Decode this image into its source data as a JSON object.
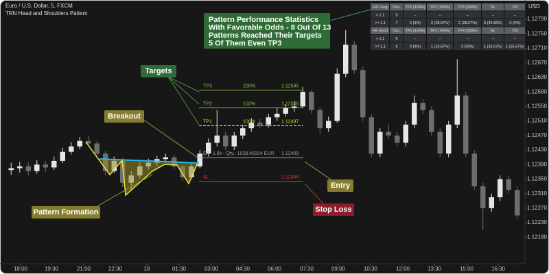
{
  "header": {
    "symbol": "Euro / U.S. Dollar, 5, FXCM",
    "indicator": "TRN Head and Shoulders Pattern",
    "currency": "USD"
  },
  "chart_data": {
    "type": "candlestick",
    "up_color": "#e6e6e6",
    "down_color": "#6e6e6e",
    "grid": false,
    "xlim": [
      0,
      60
    ],
    "ylim": [
      1.12117,
      1.12843
    ],
    "xticks": [
      {
        "value": 1.6,
        "label": "18:00"
      },
      {
        "value": 5.2,
        "label": "19:30"
      },
      {
        "value": 8.96,
        "label": "21:00"
      },
      {
        "value": 12.64,
        "label": "22:30"
      },
      {
        "value": 16.32,
        "label": "18"
      },
      {
        "value": 20.08,
        "label": "01:30"
      },
      {
        "value": 23.84,
        "label": "03:00"
      },
      {
        "value": 27.52,
        "label": "04:30"
      },
      {
        "value": 31.2,
        "label": "06:00"
      },
      {
        "value": 34.96,
        "label": "07:30"
      },
      {
        "value": 38.64,
        "label": "09:00"
      },
      {
        "value": 42.4,
        "label": "10:30"
      },
      {
        "value": 46.16,
        "label": "12:00"
      },
      {
        "value": 49.84,
        "label": "13:30"
      },
      {
        "value": 53.6,
        "label": "15:00"
      },
      {
        "value": 57.28,
        "label": "16:30"
      }
    ],
    "yticks": [
      {
        "value": 1.1279,
        "label": "1.12790"
      },
      {
        "value": 1.1275,
        "label": "1.12750"
      },
      {
        "value": 1.1271,
        "label": "1.12710"
      },
      {
        "value": 1.1267,
        "label": "1.12670"
      },
      {
        "value": 1.1263,
        "label": "1.12630"
      },
      {
        "value": 1.1259,
        "label": "1.12590"
      },
      {
        "value": 1.1255,
        "label": "1.12550"
      },
      {
        "value": 1.1251,
        "label": "1.12510"
      },
      {
        "value": 1.1247,
        "label": "1.12470"
      },
      {
        "value": 1.1243,
        "label": "1.12430"
      },
      {
        "value": 1.1239,
        "label": "1.12390"
      },
      {
        "value": 1.1235,
        "label": "1.12350"
      },
      {
        "value": 1.1231,
        "label": "1.12310"
      },
      {
        "value": 1.1227,
        "label": "1.12270"
      },
      {
        "value": 1.1223,
        "label": "1.12230"
      },
      {
        "value": 1.1219,
        "label": "1.12190"
      }
    ],
    "candles": [
      [
        1.12375,
        1.12395,
        1.12362,
        1.1238
      ],
      [
        1.1238,
        1.12398,
        1.12368,
        1.12385
      ],
      [
        1.12385,
        1.12396,
        1.1236,
        1.12372
      ],
      [
        1.12372,
        1.12402,
        1.12365,
        1.1239
      ],
      [
        1.1239,
        1.124,
        1.1237,
        1.12382
      ],
      [
        1.12382,
        1.12412,
        1.12375,
        1.124
      ],
      [
        1.124,
        1.12436,
        1.12394,
        1.12425
      ],
      [
        1.12425,
        1.12452,
        1.12418,
        1.1244
      ],
      [
        1.1244,
        1.12466,
        1.12432,
        1.12455
      ],
      [
        1.12455,
        1.12468,
        1.1244,
        1.12448
      ],
      [
        1.12448,
        1.12455,
        1.1241,
        1.1242
      ],
      [
        1.1242,
        1.12428,
        1.1236,
        1.12372
      ],
      [
        1.12372,
        1.12412,
        1.12366,
        1.124
      ],
      [
        1.124,
        1.12408,
        1.12328,
        1.1234
      ],
      [
        1.1234,
        1.12372,
        1.1232,
        1.1236
      ],
      [
        1.1236,
        1.12396,
        1.12352,
        1.12385
      ],
      [
        1.12385,
        1.12406,
        1.12376,
        1.12395
      ],
      [
        1.12395,
        1.12414,
        1.12386,
        1.12405
      ],
      [
        1.12405,
        1.1242,
        1.12396,
        1.1241
      ],
      [
        1.1241,
        1.12416,
        1.12376,
        1.12385
      ],
      [
        1.12385,
        1.1239,
        1.12345,
        1.12355
      ],
      [
        1.12355,
        1.12394,
        1.1235,
        1.12385
      ],
      [
        1.12385,
        1.1243,
        1.1238,
        1.1242
      ],
      [
        1.1242,
        1.12462,
        1.12412,
        1.1245
      ],
      [
        1.1245,
        1.1254,
        1.1244,
        1.1247
      ],
      [
        1.1247,
        1.1248,
        1.1243,
        1.1244
      ],
      [
        1.1244,
        1.1248,
        1.1243,
        1.1247
      ],
      [
        1.1247,
        1.125,
        1.1246,
        1.1249
      ],
      [
        1.1249,
        1.12518,
        1.1248,
        1.12505
      ],
      [
        1.12505,
        1.12515,
        1.1249,
        1.125
      ],
      [
        1.125,
        1.1253,
        1.12492,
        1.1252
      ],
      [
        1.1252,
        1.12545,
        1.1251,
        1.1253
      ],
      [
        1.1253,
        1.12556,
        1.12522,
        1.12545
      ],
      [
        1.12545,
        1.12565,
        1.12535,
        1.1255
      ],
      [
        1.1255,
        1.12604,
        1.12545,
        1.1259
      ],
      [
        1.1259,
        1.12596,
        1.1253,
        1.1254
      ],
      [
        1.1254,
        1.12548,
        1.12475,
        1.1249
      ],
      [
        1.1249,
        1.12522,
        1.1248,
        1.1251
      ],
      [
        1.1251,
        1.12655,
        1.12505,
        1.1264
      ],
      [
        1.1264,
        1.1276,
        1.1263,
        1.1272
      ],
      [
        1.1272,
        1.1273,
        1.1264,
        1.1265
      ],
      [
        1.1265,
        1.1266,
        1.1251,
        1.1252
      ],
      [
        1.1252,
        1.1253,
        1.1241,
        1.1242
      ],
      [
        1.1242,
        1.1249,
        1.1241,
        1.1248
      ],
      [
        1.1248,
        1.125,
        1.1246,
        1.1247
      ],
      [
        1.1247,
        1.1248,
        1.1244,
        1.1245
      ],
      [
        1.1245,
        1.1251,
        1.1244,
        1.125
      ],
      [
        1.125,
        1.1258,
        1.1249,
        1.1256
      ],
      [
        1.1256,
        1.1257,
        1.1253,
        1.1254
      ],
      [
        1.1254,
        1.1255,
        1.1247,
        1.1248
      ],
      [
        1.1248,
        1.1249,
        1.1241,
        1.1242
      ],
      [
        1.1242,
        1.1251,
        1.1241,
        1.125
      ],
      [
        1.125,
        1.1268,
        1.1249,
        1.1258
      ],
      [
        1.1258,
        1.1259,
        1.1241,
        1.1242
      ],
      [
        1.1242,
        1.1243,
        1.1232,
        1.1233
      ],
      [
        1.1233,
        1.1234,
        1.1221,
        1.1227
      ],
      [
        1.1227,
        1.1231,
        1.1226,
        1.123
      ],
      [
        1.123,
        1.1236,
        1.1229,
        1.1235
      ],
      [
        1.1235,
        1.1236,
        1.1231,
        1.1232
      ],
      [
        1.1232,
        1.1233,
        1.1224,
        1.1225
      ]
    ],
    "levels": [
      {
        "name": "TP3",
        "percent": "200%",
        "value": 1.12595,
        "color": "#8bc34a"
      },
      {
        "name": "TP2",
        "percent": "150%",
        "value": 1.12546,
        "color": "#8bc34a"
      },
      {
        "name": "TP1",
        "percent": "100%",
        "value": 1.12497,
        "color": "#cddc39"
      },
      {
        "name": "EP",
        "detail": "1.6k - Qty.: 1538.46154 EUR",
        "value": 1.12409,
        "color": "#9e9e9e"
      },
      {
        "name": "SL",
        "value": 1.12344,
        "color": "#e53935"
      }
    ]
  },
  "annotations": {
    "stats": [
      "Pattern Performance Statistics",
      "With Favorable Odds - 8 Out Of 13",
      "Patterns Reached Their Targets",
      "5 Of Them Even TP3"
    ],
    "targets": "Targets",
    "breakout": "Breakout",
    "formation": "Pattern Formation",
    "entry": "Entry",
    "stop_loss": "Stop Loss"
  },
  "table": {
    "rows": [
      [
        "HS Long",
        "Occ.",
        "TP1 (100%)",
        "TP2 (150%)",
        "TP3 (200%)",
        "SL",
        "T/O"
      ],
      [
        "< 1.1",
        "0",
        "--",
        "--",
        "--",
        "--",
        "--"
      ],
      [
        ">= 1.1",
        "7",
        "0 (0%)",
        "2 (28.57%)",
        "2 (28.57%)",
        "3 (42.86%)",
        "0 (0%)"
      ],
      [
        "HS Short",
        "Occ.",
        "TP1 (100%)",
        "TP2 (150%)",
        "TP3 (200%)",
        "SL",
        "T/O"
      ],
      [
        "< 1.1",
        "0",
        "--",
        "--",
        "--",
        "--",
        "--"
      ],
      [
        ">= 1.1",
        "6",
        "0 (0%)",
        "1 (16.67%)",
        "3 (50%)",
        "1 (16.67%)",
        "1 (16.67%)"
      ]
    ]
  }
}
